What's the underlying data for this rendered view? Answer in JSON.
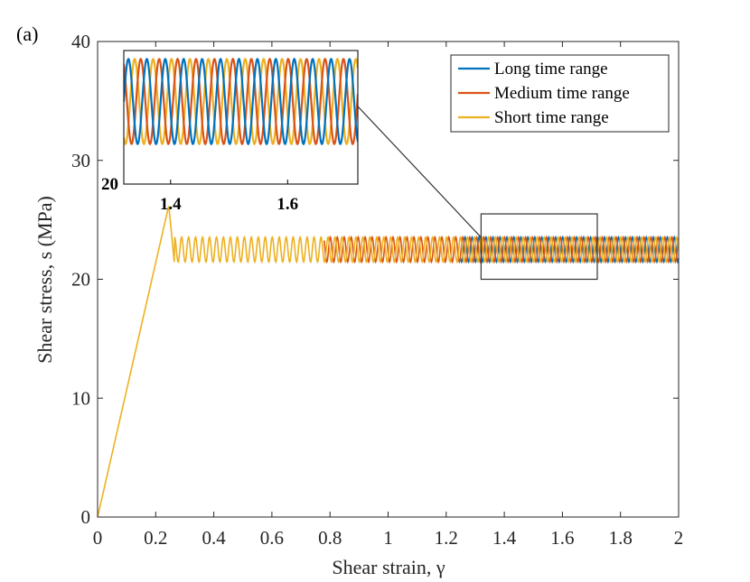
{
  "panel_label": "(a)",
  "chart_data": {
    "type": "line",
    "title": "",
    "xlabel": "Shear strain, γ",
    "ylabel": "Shear stress, s (MPa)",
    "xlim": [
      0,
      2
    ],
    "ylim": [
      0,
      40
    ],
    "xticks": [
      0,
      0.2,
      0.4,
      0.6,
      0.8,
      1,
      1.2,
      1.4,
      1.6,
      1.8,
      2
    ],
    "xtick_labels": [
      "0",
      "0.2",
      "0.4",
      "0.6",
      "0.8",
      "1",
      "1.2",
      "1.4",
      "1.6",
      "1.8",
      "2"
    ],
    "yticks": [
      0,
      10,
      20,
      30,
      40
    ],
    "ytick_labels": [
      "0",
      "10",
      "20",
      "30",
      "40"
    ],
    "grid": false,
    "legend_position": "top-right",
    "elastic_peak": {
      "strain": 0.245,
      "stress": 26.2
    },
    "plateau": {
      "mean_stress": 22.5,
      "amplitude": 1.05,
      "drop_min": 21.2
    },
    "series": [
      {
        "name": "Long time range",
        "color": "#0072BD",
        "start_strain": 1.25,
        "period": 0.024,
        "phase": 0.0
      },
      {
        "name": "Medium time range",
        "color": "#D95319",
        "start_strain": 0.78,
        "period": 0.024,
        "phase": 0.33
      },
      {
        "name": "Short time range",
        "color": "#EDB120",
        "start_strain": 0.245,
        "period": 0.024,
        "phase": 0.66
      }
    ],
    "inset": {
      "xlim": [
        1.32,
        1.72
      ],
      "ylim": [
        20,
        25.5
      ],
      "xticks": [
        1.4,
        1.6
      ],
      "xtick_labels": [
        "1.4",
        "1.6"
      ],
      "ytick_labels": [
        "20"
      ],
      "zoom_box": {
        "x": [
          1.32,
          1.72
        ],
        "y": [
          20,
          25.5
        ]
      }
    }
  },
  "colors": {
    "axis": "#262626",
    "connector": "#333333"
  }
}
